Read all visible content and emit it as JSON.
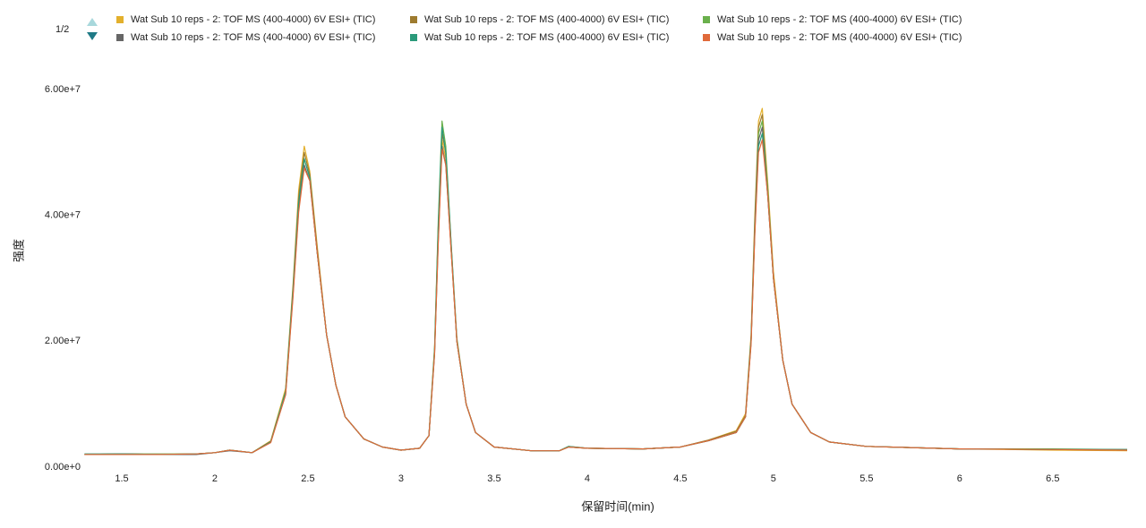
{
  "chart_data": {
    "type": "line",
    "legend_page": "1/2",
    "x_label": "保留时间(min)",
    "y_label": "强度",
    "xlim": [
      1.3,
      6.9
    ],
    "xticks": [
      1.5,
      2.0,
      2.5,
      3.0,
      3.5,
      4.0,
      4.5,
      5.0,
      5.5,
      6.0,
      6.5
    ],
    "ylim": [
      0,
      60000000
    ],
    "yticks": [
      {
        "value": 0,
        "label": "0.00e+0"
      },
      {
        "value": 20000000,
        "label": "2.00e+7"
      },
      {
        "value": 40000000,
        "label": "4.00e+7"
      },
      {
        "value": 60000000,
        "label": "6.00e+7"
      }
    ],
    "grid": false,
    "x": [
      1.3,
      1.5,
      1.7,
      1.9,
      2.0,
      2.08,
      2.2,
      2.3,
      2.38,
      2.42,
      2.45,
      2.48,
      2.51,
      2.55,
      2.6,
      2.65,
      2.7,
      2.8,
      2.9,
      3.0,
      3.1,
      3.15,
      3.18,
      3.2,
      3.22,
      3.24,
      3.27,
      3.3,
      3.35,
      3.4,
      3.5,
      3.7,
      3.85,
      3.9,
      4.0,
      4.3,
      4.5,
      4.65,
      4.8,
      4.85,
      4.88,
      4.9,
      4.92,
      4.94,
      4.97,
      5.0,
      5.05,
      5.1,
      5.2,
      5.3,
      5.5,
      6.0,
      6.5,
      6.9
    ],
    "series": [
      {
        "name": "Wat Sub 10 reps - 2: TOF MS (400-4000) 6V ESI+ (TIC)",
        "color": "#e3b02c",
        "values": [
          2000000.0,
          2100000.0,
          2000000.0,
          2100000.0,
          2300000.0,
          2700000.0,
          2300000.0,
          4200000.0,
          12500000.0,
          29000000.0,
          44000000.0,
          51000000.0,
          47000000.0,
          35000000.0,
          21000000.0,
          13000000.0,
          8000000.0,
          4500000.0,
          3200000.0,
          2700000.0,
          3000000.0,
          5000000.0,
          19000000.0,
          38000000.0,
          52000000.0,
          49000000.0,
          34000000.0,
          20000000.0,
          10000000.0,
          5500000.0,
          3200000.0,
          2600000.0,
          2600000.0,
          3200000.0,
          3000000.0,
          2900000.0,
          3200000.0,
          4300000.0,
          5800000.0,
          8500000.0,
          21000000.0,
          40000000.0,
          55000000.0,
          57000000.0,
          45000000.0,
          31000000.0,
          17000000.0,
          10000000.0,
          5500000.0,
          4000000.0,
          3300000.0,
          2900000.0,
          2700000.0,
          2600000.0
        ]
      },
      {
        "name": "Wat Sub 10 reps - 2: TOF MS (400-4000) 6V ESI+ (TIC)",
        "color": "#9e7b2f",
        "values": [
          2000000.0,
          2100000.0,
          2000000.0,
          2100000.0,
          2300000.0,
          2700000.0,
          2300000.0,
          4100000.0,
          12000000.0,
          28500000.0,
          43000000.0,
          50000000.0,
          46500000.0,
          34500000.0,
          21000000.0,
          13000000.0,
          8000000.0,
          4500000.0,
          3200000.0,
          2700000.0,
          3000000.0,
          5000000.0,
          18500000.0,
          37000000.0,
          53000000.0,
          50000000.0,
          34500000.0,
          20000000.0,
          10000000.0,
          5500000.0,
          3200000.0,
          2600000.0,
          2600000.0,
          3200000.0,
          3000000.0,
          2900000.0,
          3200000.0,
          4300000.0,
          5700000.0,
          8200000.0,
          20500000.0,
          39000000.0,
          54000000.0,
          56000000.0,
          44000000.0,
          30000000.0,
          17000000.0,
          10000000.0,
          5500000.0,
          4000000.0,
          3300000.0,
          2900000.0,
          2800000.0,
          2700000.0
        ]
      },
      {
        "name": "Wat Sub 10 reps - 2: TOF MS (400-4000) 6V ESI+ (TIC)",
        "color": "#6ab04c",
        "values": [
          2000000.0,
          2100000.0,
          2100000.0,
          2100000.0,
          2300000.0,
          2700000.0,
          2300000.0,
          4000000.0,
          12000000.0,
          28000000.0,
          42000000.0,
          49000000.0,
          46000000.0,
          34000000.0,
          21000000.0,
          13000000.0,
          8000000.0,
          4500000.0,
          3200000.0,
          2700000.0,
          3000000.0,
          5000000.0,
          19000000.0,
          39000000.0,
          55000000.0,
          51000000.0,
          35000000.0,
          20500000.0,
          10000000.0,
          5500000.0,
          3200000.0,
          2600000.0,
          2600000.0,
          3300000.0,
          3000000.0,
          2900000.0,
          3200000.0,
          4200000.0,
          5500000.0,
          8000000.0,
          20000000.0,
          38000000.0,
          53000000.0,
          55000000.0,
          44000000.0,
          30000000.0,
          17000000.0,
          10000000.0,
          5500000.0,
          4000000.0,
          3300000.0,
          2900000.0,
          2900000.0,
          2800000.0
        ]
      },
      {
        "name": "Wat Sub 10 reps - 2: TOF MS (400-4000) 6V ESI+ (TIC)",
        "color": "#666666",
        "values": [
          2000000.0,
          2100000.0,
          2000000.0,
          2000000.0,
          2300000.0,
          2600000.0,
          2300000.0,
          4000000.0,
          11500000.0,
          27500000.0,
          41000000.0,
          48000000.0,
          45500000.0,
          34000000.0,
          21000000.0,
          13000000.0,
          8000000.0,
          4500000.0,
          3200000.0,
          2700000.0,
          3000000.0,
          5000000.0,
          18000000.0,
          36000000.0,
          51000000.0,
          48000000.0,
          34000000.0,
          20000000.0,
          10000000.0,
          5500000.0,
          3200000.0,
          2600000.0,
          2600000.0,
          3200000.0,
          3000000.0,
          2900000.0,
          3200000.0,
          4200000.0,
          5500000.0,
          8000000.0,
          20000000.0,
          38000000.0,
          52000000.0,
          54000000.0,
          43000000.0,
          30000000.0,
          17000000.0,
          10000000.0,
          5500000.0,
          4000000.0,
          3300000.0,
          2900000.0,
          2800000.0,
          2800000.0
        ]
      },
      {
        "name": "Wat Sub 10 reps - 2: TOF MS (400-4000) 6V ESI+ (TIC)",
        "color": "#2a9a7a",
        "values": [
          2100000.0,
          2100000.0,
          2000000.0,
          2100000.0,
          2300000.0,
          2700000.0,
          2300000.0,
          4000000.0,
          12000000.0,
          28000000.0,
          42000000.0,
          49000000.0,
          46000000.0,
          34000000.0,
          21000000.0,
          13000000.0,
          8000000.0,
          4500000.0,
          3200000.0,
          2700000.0,
          3000000.0,
          5000000.0,
          18500000.0,
          38000000.0,
          54000000.0,
          50000000.0,
          35000000.0,
          20000000.0,
          10000000.0,
          5500000.0,
          3200000.0,
          2600000.0,
          2600000.0,
          3300000.0,
          3000000.0,
          2900000.0,
          3200000.0,
          4200000.0,
          5500000.0,
          8000000.0,
          20000000.0,
          37500000.0,
          51000000.0,
          53000000.0,
          43000000.0,
          30000000.0,
          17000000.0,
          10000000.0,
          5500000.0,
          4000000.0,
          3300000.0,
          2900000.0,
          2800000.0,
          2800000.0
        ]
      },
      {
        "name": "Wat Sub 10 reps - 2: TOF MS (400-4000) 6V ESI+ (TIC)",
        "color": "#e06a3a",
        "values": [
          2000000.0,
          2000000.0,
          2000000.0,
          2100000.0,
          2300000.0,
          2700000.0,
          2300000.0,
          3900000.0,
          11500000.0,
          27000000.0,
          40500000.0,
          47500000.0,
          45500000.0,
          34000000.0,
          21000000.0,
          13000000.0,
          8000000.0,
          4500000.0,
          3200000.0,
          2700000.0,
          3000000.0,
          5000000.0,
          18000000.0,
          35500000.0,
          50500000.0,
          48000000.0,
          34000000.0,
          20000000.0,
          10000000.0,
          5500000.0,
          3200000.0,
          2600000.0,
          2600000.0,
          3200000.0,
          3000000.0,
          2900000.0,
          3200000.0,
          4200000.0,
          5500000.0,
          8000000.0,
          19500000.0,
          37000000.0,
          50000000.0,
          52000000.0,
          43000000.0,
          30000000.0,
          17000000.0,
          10000000.0,
          5500000.0,
          4000000.0,
          3300000.0,
          2900000.0,
          2800000.0,
          2700000.0
        ]
      }
    ]
  }
}
